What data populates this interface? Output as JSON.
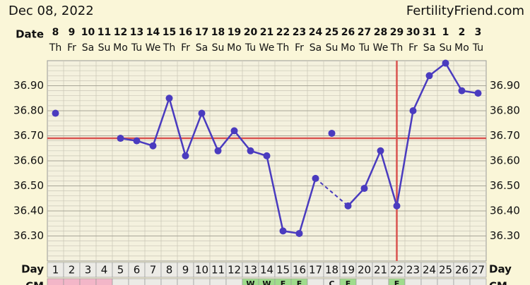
{
  "header": {
    "date": "Dec 08, 2022",
    "site": "FertilityFriend.com"
  },
  "chart_data": {
    "type": "line",
    "row_labels": {
      "date": "Date",
      "day": "Day",
      "cm": "CM"
    },
    "dates": [
      "8",
      "9",
      "10",
      "11",
      "12",
      "13",
      "14",
      "15",
      "16",
      "17",
      "18",
      "19",
      "20",
      "21",
      "22",
      "23",
      "24",
      "25",
      "26",
      "27",
      "28",
      "29",
      "30",
      "31",
      "1",
      "2",
      "3"
    ],
    "weekdays": [
      "Th",
      "Fr",
      "Sa",
      "Su",
      "Mo",
      "Tu",
      "We",
      "Th",
      "Fr",
      "Sa",
      "Su",
      "Mo",
      "Tu",
      "We",
      "Th",
      "Fr",
      "Sa",
      "Su",
      "Mo",
      "Tu",
      "We",
      "Th",
      "Fr",
      "Sa",
      "Su",
      "Mo",
      "Tu"
    ],
    "categories": [
      "1",
      "2",
      "3",
      "4",
      "5",
      "6",
      "7",
      "8",
      "9",
      "10",
      "11",
      "12",
      "13",
      "14",
      "15",
      "16",
      "17",
      "18",
      "19",
      "20",
      "21",
      "22",
      "23",
      "24",
      "25",
      "26",
      "27"
    ],
    "series": [
      {
        "color": "#4a3bbf",
        "values": [
          36.79,
          null,
          null,
          null,
          36.69,
          36.68,
          36.66,
          36.85,
          36.62,
          36.79,
          36.64,
          36.72,
          36.64,
          36.62,
          36.32,
          36.31,
          36.53,
          36.71,
          36.42,
          36.49,
          36.64,
          36.42,
          36.8,
          36.94,
          36.99,
          36.88,
          36.87
        ]
      }
    ],
    "excluded_days": [
      "18"
    ],
    "ylim": [
      36.2,
      37.0
    ],
    "yticks": [
      {
        "value": 36.3,
        "label": "36.30"
      },
      {
        "value": 36.4,
        "label": "36.40"
      },
      {
        "value": 36.5,
        "label": "36.50"
      },
      {
        "value": 36.6,
        "label": "36.60"
      },
      {
        "value": 36.7,
        "label": "36.70"
      },
      {
        "value": 36.8,
        "label": "36.80"
      },
      {
        "value": 36.9,
        "label": "36.90"
      }
    ],
    "grid": true,
    "coverline": 36.69,
    "ovulation_day": "22",
    "marker_color": "#d9534f",
    "cm": [
      null,
      null,
      null,
      null,
      null,
      null,
      null,
      null,
      null,
      null,
      null,
      null,
      "W",
      "W",
      "E",
      "E",
      null,
      "C",
      "E",
      null,
      null,
      "E",
      null,
      null,
      null,
      null,
      null
    ],
    "cm_fill": [
      "#f3b6c8",
      "#f3b6c8",
      "#f3b6c8",
      "#f3b6c8",
      null,
      null,
      null,
      null,
      null,
      null,
      null,
      null,
      "#9fdc8c",
      "#9fdc8c",
      "#9fdc8c",
      "#9fdc8c",
      null,
      null,
      "#9fdc8c",
      null,
      null,
      "#9fdc8c",
      null,
      null,
      null,
      null,
      null
    ]
  }
}
